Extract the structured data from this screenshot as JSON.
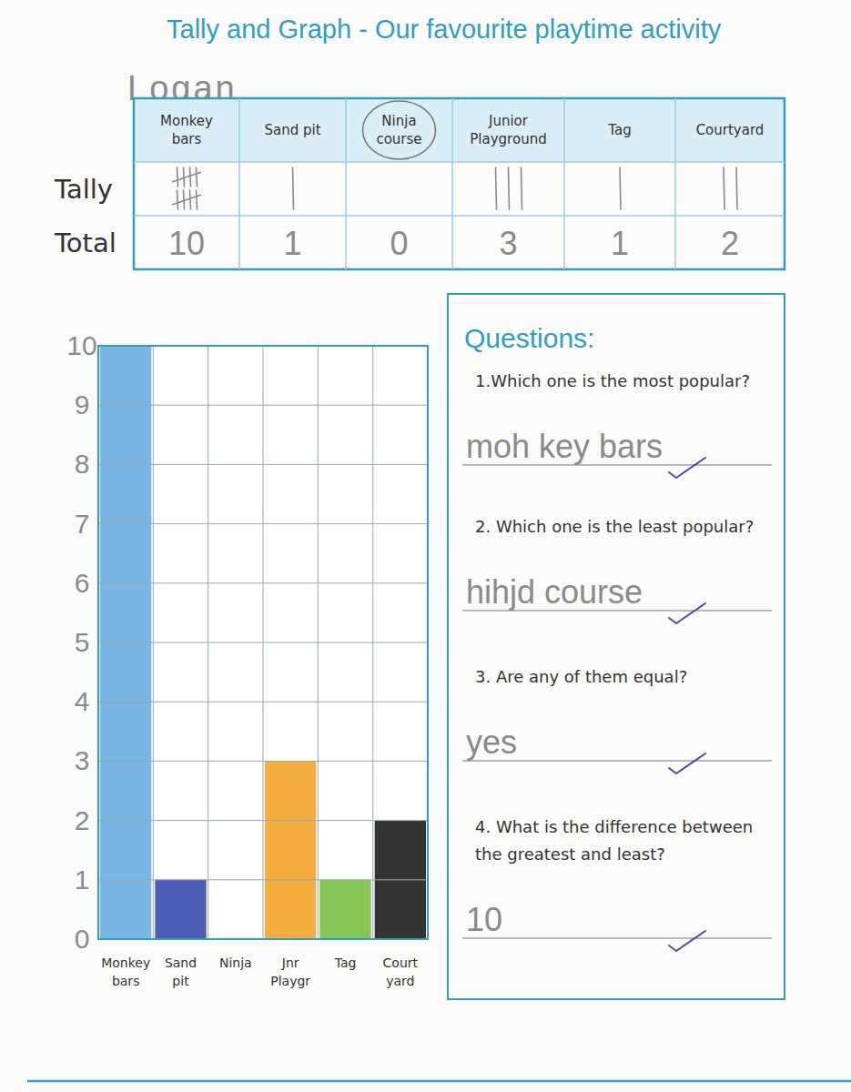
{
  "header": {
    "title": "Tally and Graph - Our favourite playtime activity",
    "name": "Logan"
  },
  "table": {
    "columns": [
      "Monkey bars",
      "Sand pit",
      "Ninja course",
      "Junior Playground",
      "Tag",
      "Courtyard"
    ],
    "row_labels": [
      "Tally",
      "Total"
    ],
    "totals": [
      10,
      1,
      0,
      3,
      1,
      2
    ],
    "circled": "Ninja course"
  },
  "chart_data": {
    "type": "bar",
    "categories": [
      "Monkey bars",
      "Sand pit",
      "Ninja",
      "Jnr Playgr",
      "Tag",
      "Court yard"
    ],
    "values": [
      10,
      1,
      0,
      3,
      1,
      2
    ],
    "colors": [
      "#6aaee0",
      "#3b4cb0",
      "#cccccc",
      "#f2a52a",
      "#78c043",
      "#1e1e1e"
    ],
    "ylim": [
      0,
      10
    ],
    "yticks": [
      0,
      1,
      2,
      3,
      4,
      5,
      6,
      7,
      8,
      9,
      10
    ],
    "grid": true
  },
  "questions": {
    "title": "Questions:",
    "items": [
      {
        "question": "1.Which one is the most popular?",
        "answer": "moh key bars"
      },
      {
        "question": "2. Which one is the least popular?",
        "answer": "hihjd course"
      },
      {
        "question": "3. Are any of them equal?",
        "answer": "yes"
      },
      {
        "question": "4. What is the difference between the greatest and least?",
        "answer": 10
      }
    ]
  }
}
